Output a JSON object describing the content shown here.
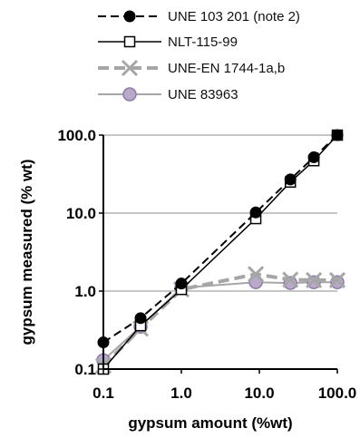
{
  "chart_data": {
    "type": "line",
    "xlabel": "gypsum amount (%wt)",
    "ylabel": "gypsum measured (% wt)",
    "xscale": "log",
    "yscale": "log",
    "xlim": [
      0.1,
      100
    ],
    "ylim": [
      0.1,
      100
    ],
    "x_ticks": [
      "0.1",
      "1.0",
      "10.0",
      "100.0"
    ],
    "y_ticks": [
      "0.1",
      "1.0",
      "10.0",
      "100.0"
    ],
    "grid": "horizontal",
    "legend_position": "top",
    "series": [
      {
        "name": "UNE 103 201 (note 2)",
        "line": "dashed",
        "marker": "filled-circle",
        "color": "#000000",
        "x": [
          0.1,
          0.3,
          1,
          9,
          25,
          50,
          100
        ],
        "y": [
          0.22,
          0.45,
          1.25,
          10.2,
          27,
          52,
          100
        ]
      },
      {
        "name": "NLT-115-99",
        "line": "solid",
        "marker": "open-square",
        "color": "#000000",
        "x": [
          0.1,
          0.3,
          1,
          9,
          25,
          50,
          100
        ],
        "y": [
          0.1,
          0.36,
          1.05,
          8.5,
          25,
          47,
          100
        ]
      },
      {
        "name": "UNE-EN 1744-1a,b",
        "line": "dashed",
        "marker": "x",
        "color": "#a6a6a6",
        "x": [
          0.1,
          0.3,
          1,
          9,
          25,
          50,
          100
        ],
        "y": [
          0.11,
          0.33,
          1.05,
          1.65,
          1.4,
          1.38,
          1.38
        ]
      },
      {
        "name": "UNE 83963",
        "line": "solid",
        "marker": "filled-circle",
        "color": "#b9a9c9",
        "x": [
          0.1,
          0.3,
          1,
          9,
          25,
          50,
          100
        ],
        "y": [
          0.13,
          0.35,
          1.1,
          1.3,
          1.27,
          1.3,
          1.3
        ]
      }
    ]
  }
}
